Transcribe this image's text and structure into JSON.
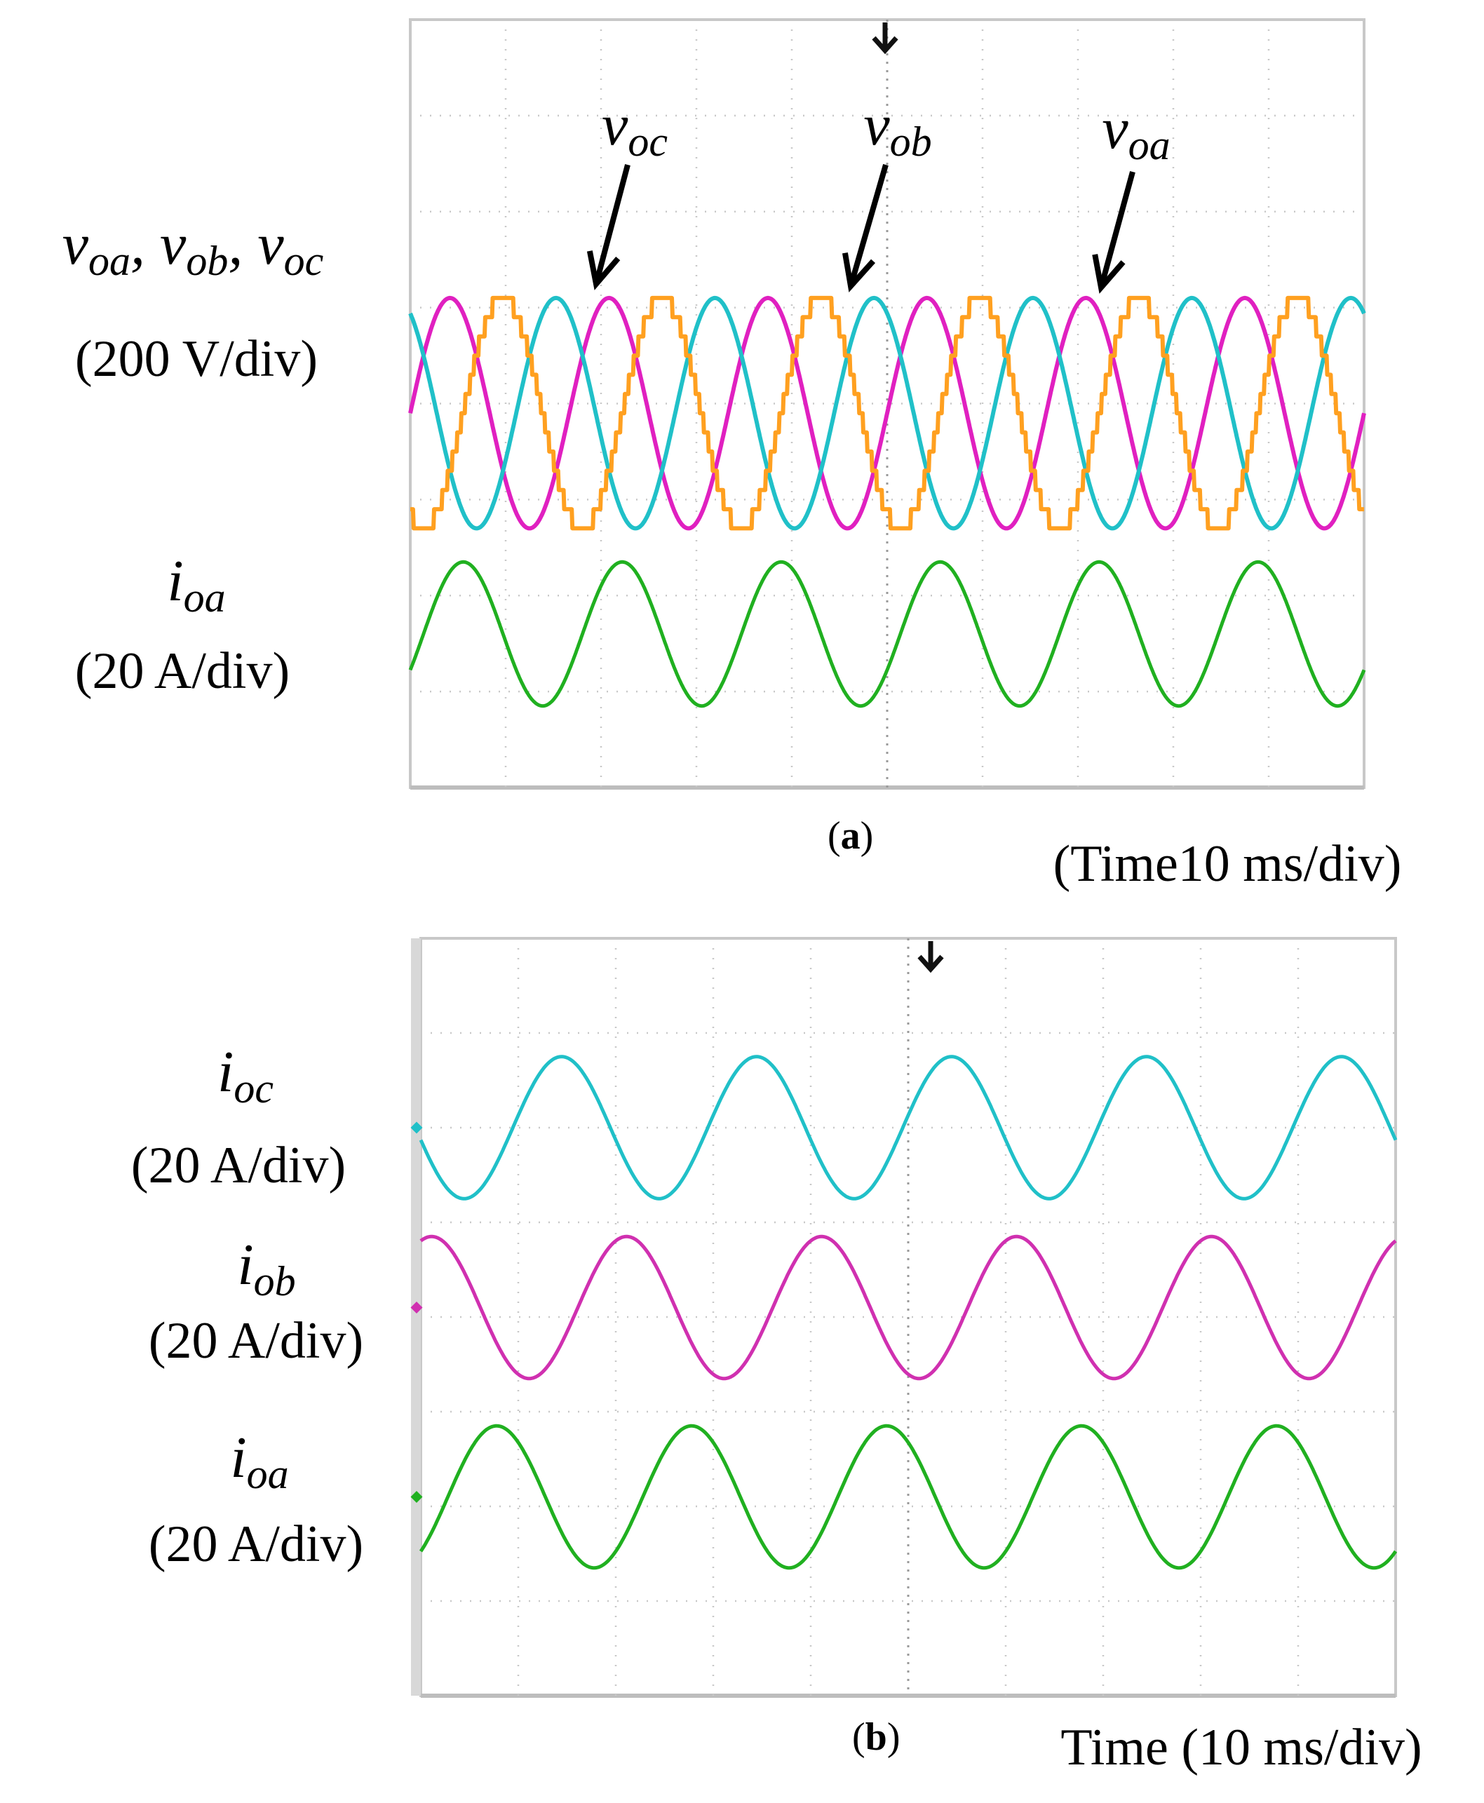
{
  "chart_data": [
    {
      "type": "line",
      "caption_open": "(",
      "caption_label": "a",
      "caption_close": ")",
      "xlabel": "(Time10 ms/div)",
      "y_labels": [
        {
          "id": "v",
          "line1_parts": [
            "v",
            "oa",
            ", ",
            "v",
            "ob",
            ", ",
            "v",
            "oc"
          ],
          "line2": "(200 V/div)"
        },
        {
          "id": "i",
          "line1_parts": [
            "i",
            "oa"
          ],
          "line2": "(20 A/div)"
        }
      ],
      "annotations": [
        {
          "name": "voc-annotation",
          "base": "v",
          "sub": "oc"
        },
        {
          "name": "vob-annotation",
          "base": "v",
          "sub": "ob"
        },
        {
          "name": "voa-annotation",
          "base": "v",
          "sub": "oa"
        }
      ],
      "divisions": {
        "x": 10,
        "y": 8
      },
      "grid": true,
      "series": [
        {
          "name": "voa",
          "color": "#e020c0",
          "kind": "sine",
          "cycles": 6,
          "phase_deg": 0,
          "center_div": 4.1,
          "amp_div": 1.2
        },
        {
          "name": "vob",
          "color": "#20c0c8",
          "kind": "sine",
          "cycles": 6,
          "phase_deg": 120,
          "center_div": 4.1,
          "amp_div": 1.2
        },
        {
          "name": "voc",
          "color": "#ffa020",
          "kind": "pwm-sine",
          "cycles": 6,
          "phase_deg": 240,
          "center_div": 4.1,
          "amp_div": 1.2
        },
        {
          "name": "ioa",
          "color": "#20b020",
          "kind": "sine",
          "cycles": 6,
          "phase_deg": -30,
          "center_div": 6.4,
          "amp_div": 0.75
        }
      ]
    },
    {
      "type": "line",
      "caption_open": "(",
      "caption_label": "b",
      "caption_close": ")",
      "xlabel": "Time (10 ms/div)",
      "y_labels": [
        {
          "id": "ic",
          "line1_parts": [
            "i",
            "oc"
          ],
          "line2": "(20 A/div)"
        },
        {
          "id": "ib",
          "line1_parts": [
            "i",
            "ob"
          ],
          "line2": "(20 A/div)"
        },
        {
          "id": "ia",
          "line1_parts": [
            "i",
            "oa"
          ],
          "line2": "(20 A/div)"
        }
      ],
      "divisions": {
        "x": 10,
        "y": 8
      },
      "grid": true,
      "series": [
        {
          "name": "ioc",
          "color": "#20c0c8",
          "kind": "sine",
          "cycles": 5,
          "phase_deg": 190,
          "center_div": 2.0,
          "amp_div": 0.75
        },
        {
          "name": "iob",
          "color": "#d030b0",
          "kind": "sine",
          "cycles": 5,
          "phase_deg": 70,
          "center_div": 3.9,
          "amp_div": 0.75
        },
        {
          "name": "ioa",
          "color": "#20b020",
          "kind": "sine",
          "cycles": 5,
          "phase_deg": -50,
          "center_div": 5.9,
          "amp_div": 0.75
        }
      ]
    }
  ]
}
